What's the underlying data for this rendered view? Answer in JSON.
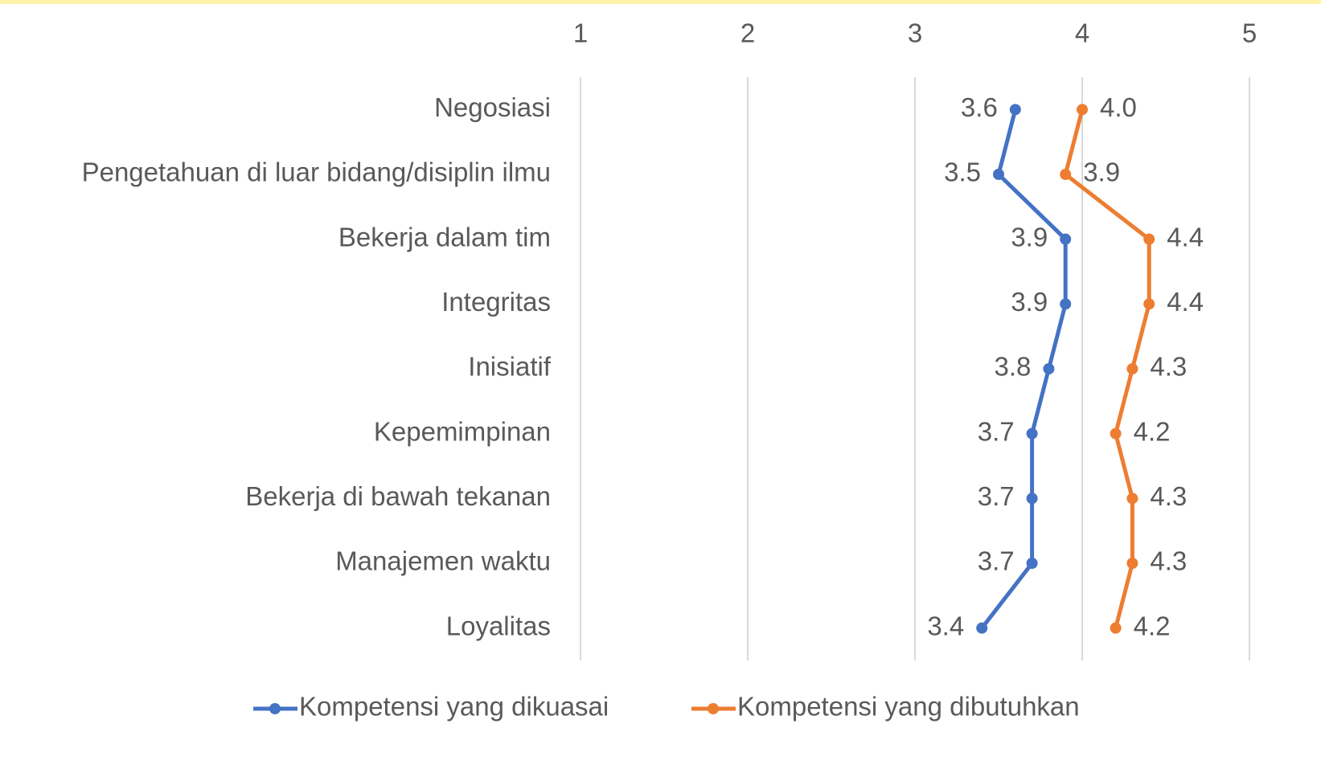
{
  "chart_data": {
    "type": "line",
    "categories": [
      "Negosiasi",
      "Pengetahuan di luar bidang/disiplin ilmu",
      "Bekerja dalam tim",
      "Integritas",
      "Inisiatif",
      "Kepemimpinan",
      "Bekerja di bawah tekanan",
      "Manajemen waktu",
      "Loyalitas"
    ],
    "series": [
      {
        "name": "Kompetensi yang dikuasai",
        "color": "#4472c4",
        "values": [
          3.6,
          3.5,
          3.9,
          3.9,
          3.8,
          3.7,
          3.7,
          3.7,
          3.4
        ],
        "value_labels": [
          "3.6",
          "3.5",
          "3.9",
          "3.9",
          "3.8",
          "3.7",
          "3.7",
          "3.7",
          "3.4"
        ]
      },
      {
        "name": "Kompetensi yang dibutuhkan",
        "color": "#ed7d31",
        "values": [
          4.0,
          3.9,
          4.4,
          4.4,
          4.3,
          4.2,
          4.3,
          4.3,
          4.2
        ],
        "value_labels": [
          "4.0",
          "3.9",
          "4.4",
          "4.4",
          "4.3",
          "4.2",
          "4.3",
          "4.3",
          "4.2"
        ]
      }
    ],
    "xlim": [
      1,
      5
    ],
    "xticks": [
      1,
      2,
      3,
      4,
      5
    ],
    "grid": true,
    "legend": "bottom"
  }
}
